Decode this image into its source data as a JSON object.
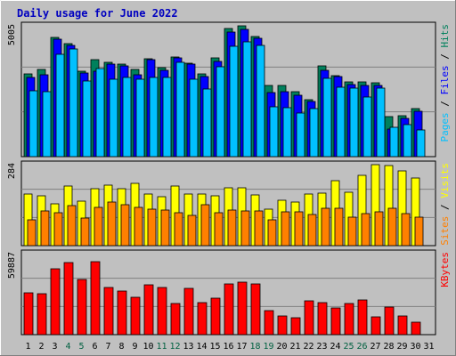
{
  "chart_data": {
    "type": "bar",
    "title": "Daily usage for June 2022",
    "categories": [
      "1",
      "2",
      "3",
      "4",
      "5",
      "6",
      "7",
      "8",
      "9",
      "10",
      "11",
      "12",
      "13",
      "14",
      "15",
      "16",
      "17",
      "18",
      "19",
      "20",
      "21",
      "22",
      "23",
      "24",
      "25",
      "26",
      "27",
      "28",
      "29",
      "30",
      "31"
    ],
    "weekend_days": [
      "4",
      "5",
      "11",
      "12",
      "18",
      "19",
      "25",
      "26"
    ],
    "colors": {
      "background": "#c0c0c0",
      "frame_outer": "#ffffff",
      "title": "#0000c0",
      "hits": "#00805c",
      "files": "#0000ff",
      "pages": "#00c0ff",
      "visits": "#ffff00",
      "sites": "#ff8000",
      "kbytes": "#ff0000",
      "weekend_label": "#006040",
      "label_dark": "#000000"
    },
    "panels": [
      {
        "id": "traffic",
        "ymax_label": "5005",
        "ymax": 5005,
        "side_labels": [
          {
            "text": "Pages",
            "color": "#00c0ff"
          },
          {
            "text": " / ",
            "color": "#000000"
          },
          {
            "text": "Files",
            "color": "#0000ff"
          },
          {
            "text": " / ",
            "color": "#000000"
          },
          {
            "text": "Hits",
            "color": "#00805c"
          }
        ],
        "series": [
          {
            "name": "Hits",
            "color": "#00805c",
            "values": [
              3180,
              3330,
              4560,
              4330,
              3280,
              3720,
              3620,
              3530,
              3330,
              3740,
              3400,
              3830,
              3580,
              3180,
              3770,
              4890,
              5005,
              4610,
              2740,
              2720,
              2500,
              2190,
              3470,
              3090,
              2850,
              2850,
              2840,
              1540,
              1550,
              1830,
              0
            ]
          },
          {
            "name": "Files",
            "color": "#0000ff",
            "values": [
              3030,
              3140,
              4480,
              4260,
              3200,
              3280,
              3550,
              3470,
              3130,
              3700,
              3300,
              3770,
              3530,
              3070,
              3650,
              4760,
              4880,
              4520,
              2450,
              2470,
              2340,
              2100,
              3290,
              3060,
              2760,
              2730,
              2720,
              1050,
              1450,
              1750,
              0
            ]
          },
          {
            "name": "Pages",
            "color": "#00c0ff",
            "values": [
              2520,
              2480,
              3910,
              4110,
              2890,
              3360,
              2970,
              3040,
              2960,
              3040,
              3030,
              3600,
              2970,
              2580,
              3450,
              4210,
              4390,
              4240,
              1900,
              1860,
              1670,
              1850,
              3010,
              2660,
              2610,
              2290,
              2610,
              1120,
              1220,
              1030,
              0
            ]
          }
        ]
      },
      {
        "id": "visits",
        "ymax_label": "284",
        "ymax": 284,
        "side_labels": [
          {
            "text": "Sites",
            "color": "#ff8000"
          },
          {
            "text": " / ",
            "color": "#000000"
          },
          {
            "text": "Visits",
            "color": "#ffff00"
          }
        ],
        "series": [
          {
            "name": "Visits",
            "color": "#ffff00",
            "values": [
              182,
              174,
              148,
              210,
              155,
              200,
              212,
              200,
              220,
              180,
              173,
              210,
              181,
              181,
              175,
              203,
              204,
              178,
              128,
              158,
              154,
              181,
              183,
              227,
              187,
              248,
              284,
              281,
              262,
              237,
              0
            ]
          },
          {
            "name": "Sites",
            "color": "#ff8000",
            "values": [
              91,
              122,
              114,
              139,
              98,
              134,
              152,
              143,
              133,
              129,
              124,
              114,
              106,
              142,
              117,
              125,
              121,
              121,
              90,
              120,
              119,
              109,
              131,
              130,
              99,
              111,
              120,
              130,
              113,
              100,
              0
            ]
          }
        ]
      },
      {
        "id": "kbytes",
        "ymax_label": "59887",
        "ymax": 59887,
        "side_labels": [
          {
            "text": "KBytes",
            "color": "#ff0000"
          }
        ],
        "series": [
          {
            "name": "KBytes",
            "color": "#ff0000",
            "values": [
              31200,
              30500,
              49000,
              53500,
              41000,
              53800,
              34600,
              32300,
              27700,
              36600,
              35000,
              22800,
              34400,
              23700,
              27100,
              37200,
              38900,
              37700,
              17900,
              13700,
              12200,
              24700,
              23600,
              19500,
              22800,
              25700,
              13400,
              20600,
              14000,
              9400,
              0
            ]
          }
        ]
      }
    ]
  }
}
